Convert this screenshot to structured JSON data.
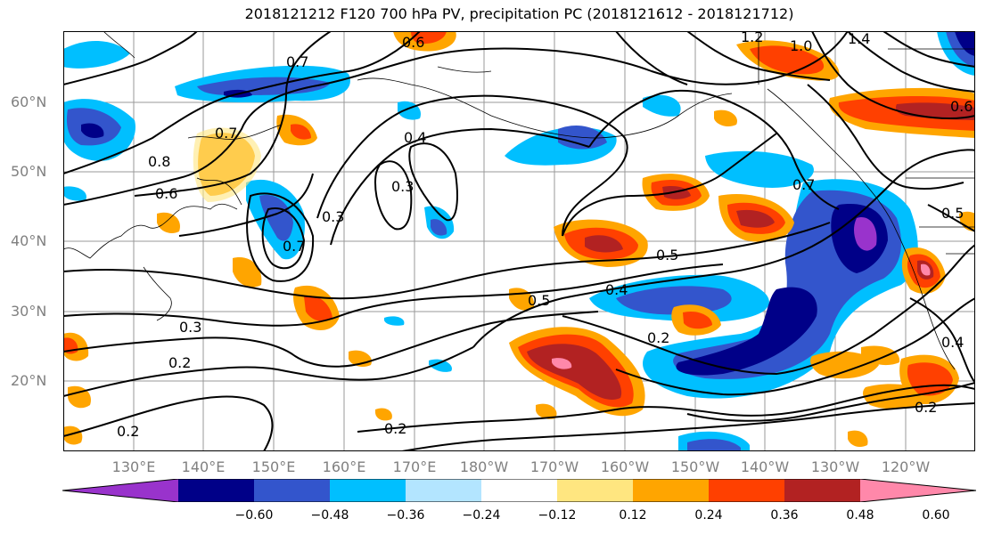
{
  "title": "2018121212 F120 700 hPa PV, precipitation PC (2018121612 - 2018121712)",
  "lat_labels": [
    "60°N",
    "50°N",
    "40°N",
    "30°N",
    "20°N"
  ],
  "lon_labels": [
    "130°E",
    "140°E",
    "150°E",
    "160°E",
    "170°E",
    "180°W",
    "170°W",
    "160°W",
    "150°W",
    "140°W",
    "130°W",
    "120°W"
  ],
  "contour_labels": [
    "0.6",
    "1.2",
    "1.0",
    "1.4",
    "0.7",
    "0.8",
    "0.6",
    "0.3",
    "0.4",
    "0.3",
    "0.7",
    "0.6",
    "0.5",
    "0.5",
    "0.4",
    "0.3",
    "0.2",
    "0.2",
    "0.2",
    "0.2",
    "0.7",
    "0.7",
    "0.5",
    "0.4",
    "0.2"
  ],
  "colorbar": {
    "ticks": [
      "−0.60",
      "−0.48",
      "−0.36",
      "−0.24",
      "−0.12",
      "0.12",
      "0.24",
      "0.36",
      "0.48",
      "0.60"
    ],
    "colors": [
      "#9933cc",
      "#000088",
      "#3355cc",
      "#00bfff",
      "#b3e5ff",
      "#ffffff",
      "#ffe680",
      "#ffa500",
      "#ff4000",
      "#b22222",
      "#ff88aa"
    ]
  },
  "colors": {
    "neg_strong": "#000088",
    "neg_mid": "#3355cc",
    "neg_light": "#00bfff",
    "neg_pale": "#b3e5ff",
    "neg_extreme": "#9933cc",
    "pos_pale": "#ffe680",
    "pos_light": "#ffa500",
    "pos_mid": "#ff4000",
    "pos_strong": "#b22222",
    "pos_extreme": "#ff88aa",
    "grid": "#999999",
    "contour": "#000000"
  }
}
